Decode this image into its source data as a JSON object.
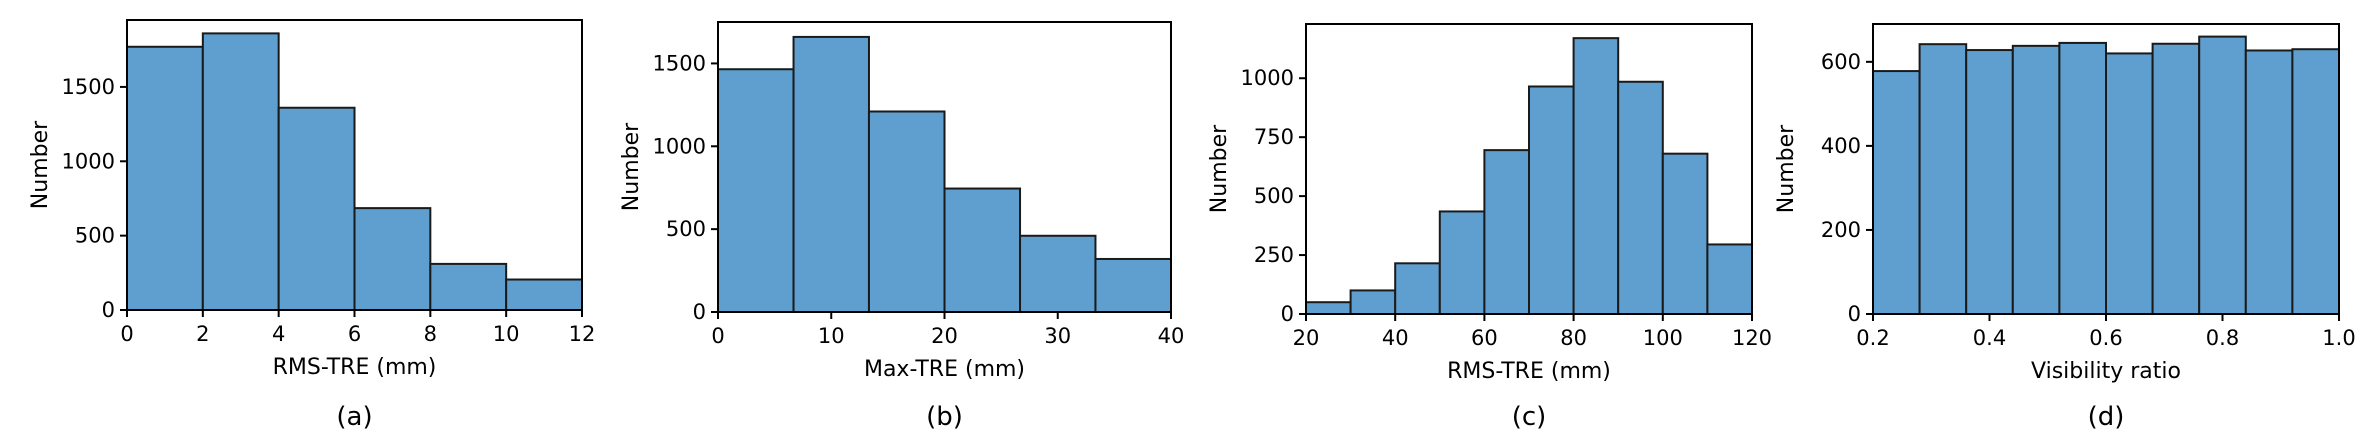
{
  "colors": {
    "bar_fill": "#5f9fcf",
    "bar_edge": "#1a1a1a"
  },
  "chart_data": [
    {
      "type": "bar",
      "caption": "(a)",
      "xlabel": "RMS-TRE (mm)",
      "ylabel": "Number",
      "bin_edges": [
        0,
        2,
        4,
        6,
        8,
        10,
        12
      ],
      "values": [
        1770,
        1860,
        1360,
        685,
        310,
        205
      ],
      "xlim": [
        0,
        12
      ],
      "ylim": [
        0,
        1950
      ],
      "xticks": [
        0,
        2,
        4,
        6,
        8,
        10,
        12
      ],
      "yticks": [
        0,
        500,
        1000,
        1500
      ],
      "grid": false
    },
    {
      "type": "bar",
      "caption": "(b)",
      "xlabel": "Max-TRE (mm)",
      "ylabel": "Number",
      "bin_edges": [
        0,
        6.67,
        13.33,
        20,
        26.67,
        33.33,
        40
      ],
      "values": [
        1465,
        1660,
        1210,
        745,
        460,
        320
      ],
      "xlim": [
        0,
        40
      ],
      "ylim": [
        0,
        1750
      ],
      "xticks": [
        0,
        10,
        20,
        30,
        40
      ],
      "yticks": [
        0,
        500,
        1000,
        1500
      ],
      "grid": false
    },
    {
      "type": "bar",
      "caption": "(c)",
      "xlabel": "RMS-TRE (mm)",
      "ylabel": "Number",
      "bin_edges": [
        20,
        30,
        40,
        50,
        60,
        70,
        80,
        90,
        100,
        110,
        120
      ],
      "values": [
        50,
        100,
        215,
        435,
        695,
        965,
        1170,
        985,
        680,
        295
      ],
      "xlim": [
        20,
        120
      ],
      "ylim": [
        0,
        1230
      ],
      "xticks": [
        20,
        40,
        60,
        80,
        100,
        120
      ],
      "yticks": [
        0,
        250,
        500,
        750,
        1000
      ],
      "grid": false
    },
    {
      "type": "bar",
      "caption": "(d)",
      "xlabel": "Visibility ratio",
      "ylabel": "Number",
      "bin_edges": [
        0.2,
        0.28,
        0.36,
        0.44,
        0.52,
        0.6,
        0.68,
        0.76,
        0.84,
        0.92,
        1.0
      ],
      "values": [
        578,
        642,
        628,
        638,
        645,
        620,
        643,
        660,
        627,
        630
      ],
      "xlim": [
        0.2,
        1.0
      ],
      "ylim": [
        0,
        690
      ],
      "xticks": [
        0.2,
        0.4,
        0.6,
        0.8,
        1.0
      ],
      "yticks": [
        0,
        200,
        400,
        600
      ],
      "grid": false
    }
  ]
}
